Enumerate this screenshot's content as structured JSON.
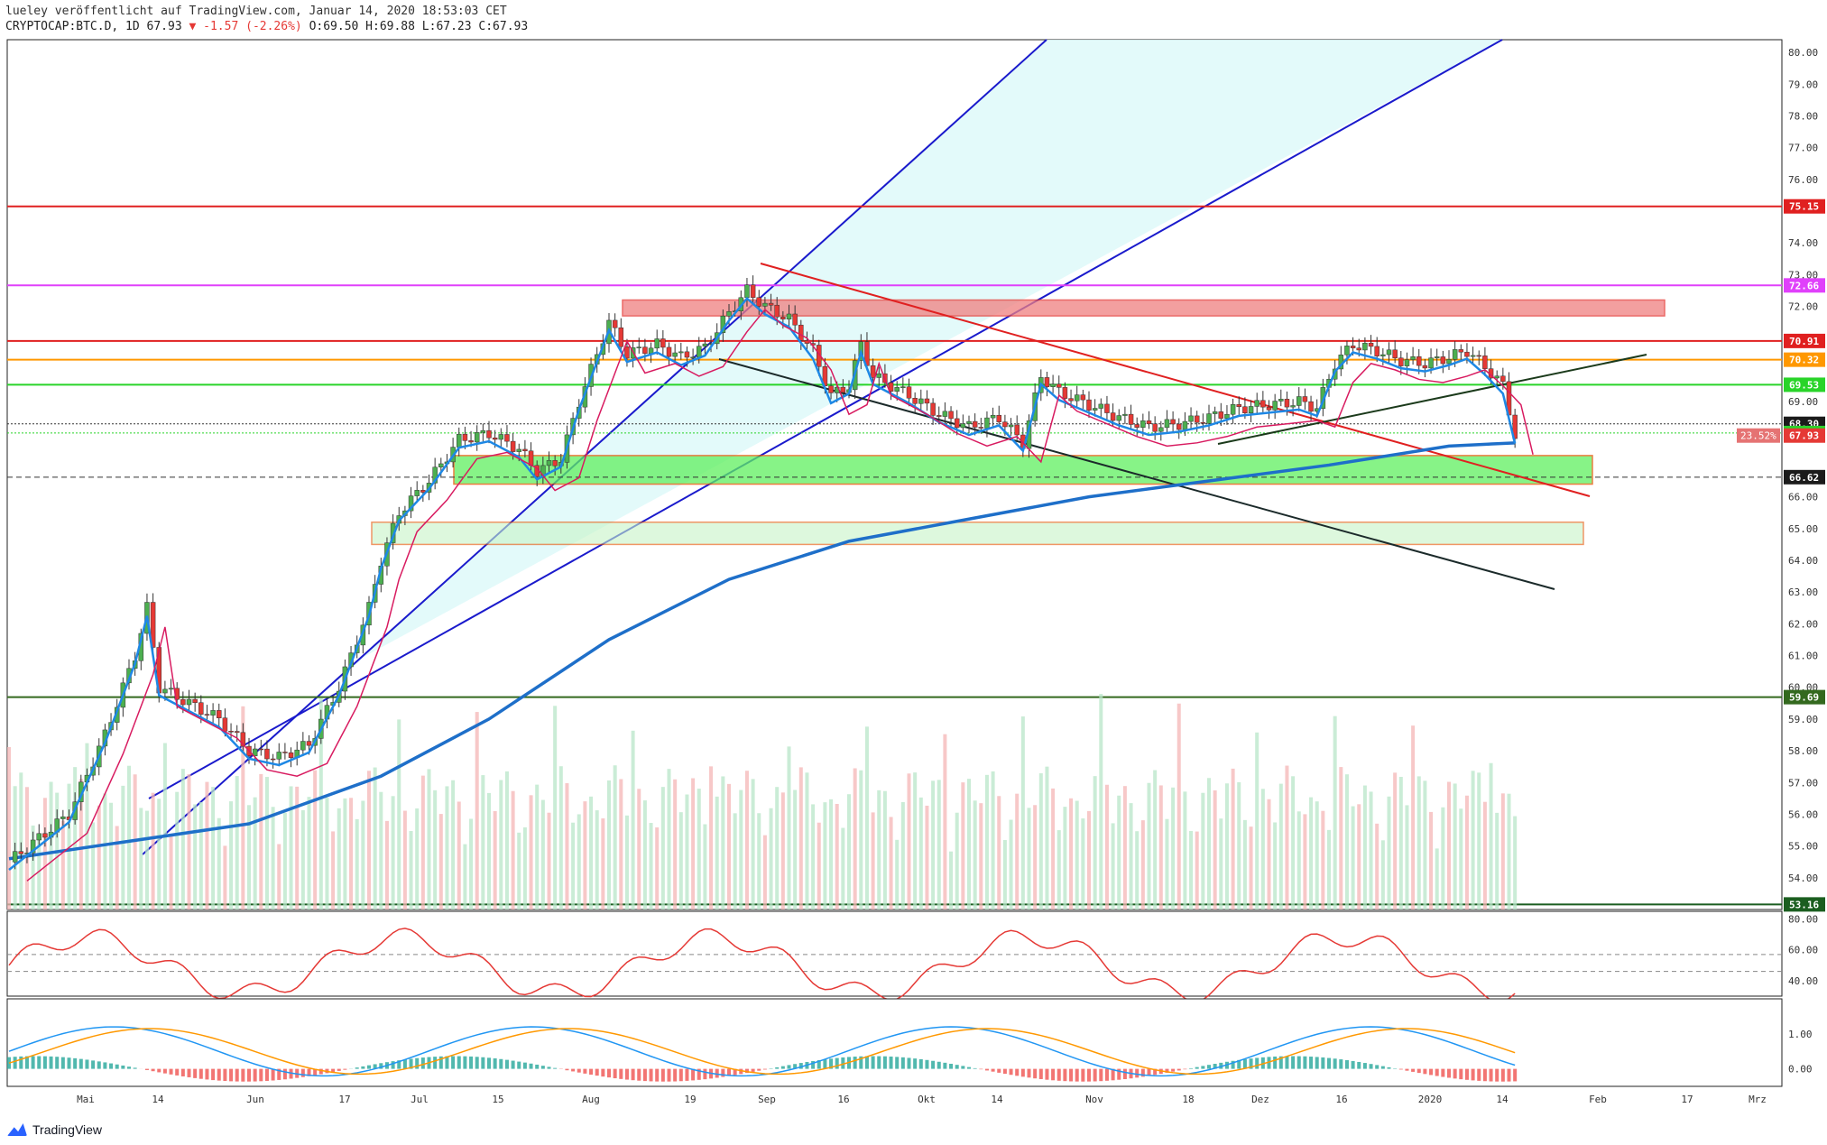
{
  "header": {
    "line1": "lueley veröffentlicht auf TradingView.com, Januar 14, 2020 18:53:03 CET",
    "symbol": "CRYPTOCAP:BTC.D, 1D 67.93",
    "change": "▼ -1.57 (-2.26%)",
    "ohlc": "O:69.50 H:69.88 L:67.23 C:67.93"
  },
  "footer": {
    "brand": "TradingView"
  },
  "colors": {
    "channel_fill": "#e0fafa",
    "channel_line": "#1a1acc",
    "candle_up": "#4caf50",
    "candle_down": "#e53935",
    "ma200": "#1e6fc9",
    "hline_red": "#e02020",
    "hline_magenta": "#e040fb",
    "hline_orange": "#ff9800",
    "hline_green": "#29d429",
    "zone_green": "#5ff05f",
    "zone_red": "#f08080",
    "rsi_line": "#e53935",
    "macd_line": "#2196f3",
    "signal_line": "#ff9800"
  },
  "chart_data": {
    "type": "candlestick",
    "y_axis_ticks": [
      "80.00",
      "79.00",
      "78.00",
      "77.00",
      "76.00",
      "74.00",
      "73.00",
      "72.00",
      "69.00",
      "66.00",
      "65.00",
      "64.00",
      "63.00",
      "62.00",
      "61.00",
      "60.00",
      "59.00",
      "58.00",
      "57.00",
      "56.00",
      "55.00",
      "54.00"
    ],
    "ylim": [
      53.0,
      80.4
    ],
    "x_tick_labels": [
      "Mai",
      "14",
      "Jun",
      "17",
      "Jul",
      "15",
      "Aug",
      "19",
      "Sep",
      "16",
      "Okt",
      "14",
      "Nov",
      "18",
      "Dez",
      "16",
      "2020",
      "14",
      "Feb",
      "17",
      "Mrz"
    ],
    "price_labels": [
      {
        "value": "75.15",
        "color": "#e02020"
      },
      {
        "value": "72.66",
        "color": "#e040fb"
      },
      {
        "value": "70.91",
        "color": "#e02020"
      },
      {
        "value": "70.32",
        "color": "#ff9800"
      },
      {
        "value": "69.53",
        "color": "#29d429"
      },
      {
        "value": "68.30",
        "color": "#1b1b1b"
      },
      {
        "value": "68.01",
        "color": "#29d429"
      },
      {
        "value": "67.93",
        "color": "#e53935"
      },
      {
        "value": "66.62",
        "color": "#1b1b1b"
      },
      {
        "value": "59.69",
        "color": "#33691e"
      },
      {
        "value": "53.16",
        "color": "#1b5e20"
      }
    ],
    "fib_label": "23.52%",
    "horizontal_levels": [
      75.15,
      72.66,
      70.91,
      70.32,
      69.53,
      68.3,
      68.01,
      66.62,
      59.69,
      53.16
    ],
    "zones": [
      {
        "from": 71.7,
        "to": 72.2,
        "color": "#f08080"
      },
      {
        "from": 66.4,
        "to": 67.3,
        "color": "#5ff05f"
      },
      {
        "from": 64.5,
        "to": 65.2,
        "color": "#c8f5c8"
      }
    ],
    "series": [
      {
        "name": "BTC.D close",
        "points": [
          [
            0,
            54.5
          ],
          [
            10,
            56
          ],
          [
            16,
            58.5
          ],
          [
            21,
            61
          ],
          [
            23,
            62.5
          ],
          [
            25,
            60
          ],
          [
            30,
            59.5
          ],
          [
            35,
            59
          ],
          [
            40,
            58
          ],
          [
            45,
            57.8
          ],
          [
            50,
            58.2
          ],
          [
            55,
            60
          ],
          [
            60,
            62.5
          ],
          [
            62,
            64
          ],
          [
            65,
            65.5
          ],
          [
            70,
            66.5
          ],
          [
            75,
            67.8
          ],
          [
            80,
            68
          ],
          [
            85,
            67.5
          ],
          [
            88,
            66.8
          ],
          [
            92,
            67.2
          ],
          [
            95,
            69
          ],
          [
            98,
            70.5
          ],
          [
            100,
            71.5
          ],
          [
            103,
            70.5
          ],
          [
            108,
            70.8
          ],
          [
            112,
            70.4
          ],
          [
            116,
            70.7
          ],
          [
            120,
            71.8
          ],
          [
            123,
            72.5
          ],
          [
            126,
            72
          ],
          [
            130,
            71.6
          ],
          [
            134,
            70.6
          ],
          [
            137,
            69.2
          ],
          [
            140,
            69.5
          ],
          [
            142,
            70.8
          ],
          [
            144,
            69.8
          ],
          [
            150,
            69.2
          ],
          [
            155,
            68.6
          ],
          [
            160,
            68.2
          ],
          [
            165,
            68.5
          ],
          [
            169,
            67.7
          ],
          [
            172,
            69.8
          ],
          [
            175,
            69.3
          ],
          [
            180,
            68.9
          ],
          [
            185,
            68.5
          ],
          [
            190,
            68.2
          ],
          [
            195,
            68.3
          ],
          [
            200,
            68.5
          ],
          [
            205,
            68.8
          ],
          [
            210,
            68.9
          ],
          [
            215,
            69
          ],
          [
            218,
            68.8
          ],
          [
            221,
            70.2
          ],
          [
            224,
            70.8
          ],
          [
            228,
            70.6
          ],
          [
            232,
            70.3
          ],
          [
            236,
            70.2
          ],
          [
            240,
            70.4
          ],
          [
            243,
            70.6
          ],
          [
            246,
            70.1
          ],
          [
            249,
            69.5
          ],
          [
            251,
            67.93
          ]
        ]
      },
      {
        "name": "MA 200",
        "points": [
          [
            0,
            54.6
          ],
          [
            40,
            55.7
          ],
          [
            62,
            57.2
          ],
          [
            80,
            59
          ],
          [
            100,
            61.5
          ],
          [
            120,
            63.4
          ],
          [
            140,
            64.6
          ],
          [
            160,
            65.3
          ],
          [
            180,
            66
          ],
          [
            200,
            66.5
          ],
          [
            220,
            67
          ],
          [
            240,
            67.6
          ],
          [
            251,
            67.7
          ]
        ]
      }
    ],
    "rsi": {
      "ylim": [
        30,
        85
      ],
      "ticks": [
        "80.00",
        "60.00",
        "40.00"
      ],
      "dashed": [
        57,
        46
      ]
    },
    "macd": {
      "ylim": [
        -0.5,
        2.0
      ],
      "ticks": [
        "1.00",
        "0.00"
      ]
    }
  }
}
